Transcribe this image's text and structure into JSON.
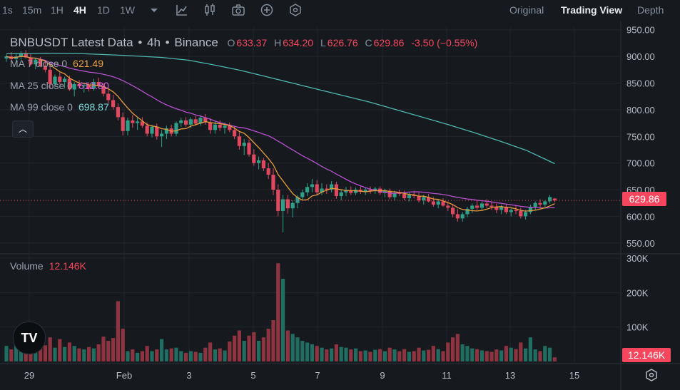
{
  "toolbar": {
    "timeframes": [
      "1s",
      "15m",
      "1H",
      "4H",
      "1D",
      "1W"
    ],
    "active_timeframe": "4H",
    "views": [
      "Original",
      "Trading View",
      "Depth"
    ],
    "active_view": "Trading View"
  },
  "legend": {
    "symbol": "BNBUSDT Latest Data",
    "interval": "4h",
    "exchange": "Binance",
    "open_label": "O",
    "open": "633.37",
    "high_label": "H",
    "high": "634.20",
    "low_label": "L",
    "low": "626.76",
    "close_label": "C",
    "close": "629.86",
    "change": "-3.50 (−0.55%)"
  },
  "indicators": [
    {
      "label": "MA 7 close 0",
      "value": "621.49",
      "color": "#f0a340"
    },
    {
      "label": "MA 25 close 0",
      "value": "612.80",
      "color": "#d65fe4"
    },
    {
      "label": "MA 99 close 0",
      "value": "698.87",
      "color": "#7fd9da"
    }
  ],
  "volume": {
    "label": "Volume",
    "value": "12.146K"
  },
  "badges": {
    "price": "629.86",
    "volume": "12.146K"
  },
  "logo_text": "TV",
  "colors": {
    "up": "#2ea089",
    "down": "#e0485f",
    "up_vol": "#1f6e61",
    "down_vol": "#8e3440",
    "ma7": "#e69b3c",
    "ma25": "#b84fd1",
    "ma99": "#4fb6b0"
  },
  "chart_data": {
    "type": "candlestick",
    "price_axis": {
      "min": 535,
      "max": 955,
      "ticks": [
        550,
        600,
        650,
        700,
        750,
        800,
        850,
        900,
        950
      ],
      "tick_labels": [
        "550.00",
        "600.00",
        "650.00",
        "700.00",
        "750.00",
        "800.00",
        "850.00",
        "900.00",
        "950.00"
      ]
    },
    "volume_axis": {
      "min": 0,
      "max": 300000,
      "ticks": [
        100000,
        200000,
        300000
      ],
      "tick_labels": [
        "100K",
        "200K",
        "300K"
      ]
    },
    "x_axis_labels": [
      "29",
      "Feb",
      "3",
      "5",
      "7",
      "9",
      "11",
      "13",
      "15"
    ],
    "last_price": 629.86,
    "ma99_points": [
      [
        0,
        905
      ],
      [
        15,
        906
      ],
      [
        30,
        905
      ],
      [
        45,
        902
      ],
      [
        60,
        898
      ],
      [
        70,
        893
      ],
      [
        80,
        884
      ],
      [
        90,
        874
      ],
      [
        100,
        862
      ],
      [
        110,
        850
      ],
      [
        120,
        838
      ],
      [
        130,
        826
      ],
      [
        140,
        814
      ],
      [
        150,
        800
      ],
      [
        160,
        786
      ],
      [
        170,
        772
      ],
      [
        180,
        757
      ],
      [
        190,
        741
      ],
      [
        200,
        724
      ],
      [
        211,
        698.87
      ]
    ],
    "ohlcv": [
      [
        896,
        904,
        890,
        900,
        45000
      ],
      [
        900,
        908,
        893,
        895,
        35000
      ],
      [
        895,
        905,
        888,
        900,
        52000
      ],
      [
        900,
        910,
        894,
        905,
        40000
      ],
      [
        905,
        912,
        896,
        898,
        60000
      ],
      [
        898,
        904,
        882,
        885,
        55000
      ],
      [
        885,
        898,
        876,
        894,
        48000
      ],
      [
        894,
        899,
        880,
        882,
        50000
      ],
      [
        882,
        890,
        870,
        875,
        47000
      ],
      [
        875,
        880,
        840,
        848,
        70000
      ],
      [
        848,
        866,
        842,
        862,
        40000
      ],
      [
        862,
        870,
        848,
        852,
        65000
      ],
      [
        852,
        862,
        840,
        858,
        42000
      ],
      [
        858,
        864,
        835,
        838,
        55000
      ],
      [
        838,
        852,
        825,
        848,
        45000
      ],
      [
        848,
        856,
        840,
        844,
        38000
      ],
      [
        844,
        850,
        832,
        846,
        35000
      ],
      [
        846,
        852,
        834,
        840,
        42000
      ],
      [
        840,
        858,
        836,
        852,
        38000
      ],
      [
        852,
        860,
        840,
        844,
        50000
      ],
      [
        844,
        850,
        825,
        830,
        72000
      ],
      [
        830,
        840,
        812,
        818,
        60000
      ],
      [
        818,
        828,
        800,
        805,
        68000
      ],
      [
        805,
        812,
        780,
        786,
        175000
      ],
      [
        786,
        795,
        752,
        760,
        95000
      ],
      [
        760,
        785,
        752,
        780,
        30000
      ],
      [
        780,
        790,
        766,
        775,
        35000
      ],
      [
        775,
        785,
        762,
        778,
        25000
      ],
      [
        778,
        786,
        766,
        770,
        30000
      ],
      [
        770,
        776,
        750,
        755,
        45000
      ],
      [
        755,
        772,
        748,
        768,
        30000
      ],
      [
        768,
        774,
        744,
        750,
        35000
      ],
      [
        750,
        762,
        730,
        755,
        65000
      ],
      [
        755,
        770,
        745,
        765,
        35000
      ],
      [
        765,
        772,
        750,
        755,
        38000
      ],
      [
        755,
        778,
        750,
        775,
        40000
      ],
      [
        775,
        785,
        768,
        780,
        30000
      ],
      [
        780,
        786,
        768,
        772,
        25000
      ],
      [
        772,
        786,
        766,
        782,
        30000
      ],
      [
        782,
        788,
        770,
        774,
        28000
      ],
      [
        774,
        790,
        770,
        785,
        25000
      ],
      [
        785,
        792,
        772,
        776,
        40000
      ],
      [
        776,
        784,
        755,
        762,
        55000
      ],
      [
        762,
        778,
        755,
        772,
        35000
      ],
      [
        772,
        780,
        760,
        766,
        38000
      ],
      [
        766,
        776,
        755,
        770,
        32000
      ],
      [
        770,
        776,
        758,
        762,
        58000
      ],
      [
        762,
        770,
        745,
        750,
        75000
      ],
      [
        750,
        758,
        725,
        732,
        90000
      ],
      [
        732,
        745,
        715,
        738,
        60000
      ],
      [
        738,
        744,
        712,
        716,
        75000
      ],
      [
        716,
        726,
        695,
        700,
        85000
      ],
      [
        700,
        712,
        688,
        705,
        60000
      ],
      [
        705,
        710,
        685,
        690,
        70000
      ],
      [
        690,
        700,
        670,
        678,
        95000
      ],
      [
        678,
        690,
        640,
        650,
        120000
      ],
      [
        650,
        660,
        600,
        610,
        285000
      ],
      [
        610,
        640,
        570,
        632,
        240000
      ],
      [
        632,
        640,
        605,
        615,
        90000
      ],
      [
        615,
        630,
        598,
        625,
        80000
      ],
      [
        625,
        640,
        615,
        636,
        70000
      ],
      [
        636,
        650,
        630,
        645,
        60000
      ],
      [
        645,
        662,
        638,
        655,
        55000
      ],
      [
        655,
        670,
        645,
        660,
        50000
      ],
      [
        660,
        668,
        640,
        645,
        45000
      ],
      [
        645,
        662,
        640,
        652,
        40000
      ],
      [
        652,
        660,
        642,
        650,
        35000
      ],
      [
        650,
        666,
        645,
        660,
        38000
      ],
      [
        660,
        665,
        633,
        638,
        50000
      ],
      [
        638,
        650,
        630,
        645,
        42000
      ],
      [
        645,
        655,
        638,
        648,
        40000
      ],
      [
        648,
        656,
        640,
        644,
        35000
      ],
      [
        644,
        654,
        640,
        650,
        38000
      ],
      [
        650,
        656,
        642,
        646,
        30000
      ],
      [
        646,
        654,
        640,
        650,
        32000
      ],
      [
        650,
        656,
        642,
        648,
        28000
      ],
      [
        648,
        655,
        642,
        652,
        34000
      ],
      [
        652,
        656,
        640,
        644,
        36000
      ],
      [
        644,
        652,
        636,
        648,
        30000
      ],
      [
        648,
        652,
        632,
        636,
        40000
      ],
      [
        636,
        648,
        630,
        644,
        35000
      ],
      [
        644,
        650,
        638,
        642,
        30000
      ],
      [
        642,
        648,
        630,
        634,
        36000
      ],
      [
        634,
        644,
        628,
        640,
        28000
      ],
      [
        640,
        648,
        634,
        638,
        30000
      ],
      [
        638,
        644,
        626,
        630,
        40000
      ],
      [
        630,
        640,
        622,
        636,
        32000
      ],
      [
        636,
        642,
        626,
        628,
        34000
      ],
      [
        628,
        636,
        618,
        622,
        45000
      ],
      [
        622,
        632,
        615,
        628,
        36000
      ],
      [
        628,
        634,
        618,
        620,
        30000
      ],
      [
        620,
        628,
        610,
        616,
        55000
      ],
      [
        616,
        622,
        598,
        604,
        70000
      ],
      [
        604,
        614,
        590,
        596,
        80000
      ],
      [
        596,
        608,
        590,
        604,
        50000
      ],
      [
        604,
        618,
        598,
        614,
        45000
      ],
      [
        614,
        624,
        606,
        620,
        38000
      ],
      [
        620,
        630,
        612,
        616,
        36000
      ],
      [
        616,
        628,
        610,
        624,
        32000
      ],
      [
        624,
        632,
        616,
        620,
        30000
      ],
      [
        620,
        628,
        612,
        618,
        28000
      ],
      [
        618,
        624,
        606,
        612,
        35000
      ],
      [
        612,
        622,
        604,
        618,
        32000
      ],
      [
        618,
        624,
        604,
        608,
        45000
      ],
      [
        608,
        616,
        600,
        612,
        40000
      ],
      [
        612,
        620,
        604,
        610,
        36000
      ],
      [
        610,
        616,
        596,
        600,
        55000
      ],
      [
        600,
        612,
        594,
        608,
        38000
      ],
      [
        608,
        622,
        604,
        618,
        70000
      ],
      [
        618,
        628,
        612,
        625,
        35000
      ],
      [
        625,
        632,
        616,
        622,
        30000
      ],
      [
        622,
        630,
        618,
        628,
        45000
      ],
      [
        628,
        640,
        624,
        636,
        40000
      ],
      [
        633.37,
        634.2,
        626.76,
        629.86,
        12146
      ]
    ]
  }
}
